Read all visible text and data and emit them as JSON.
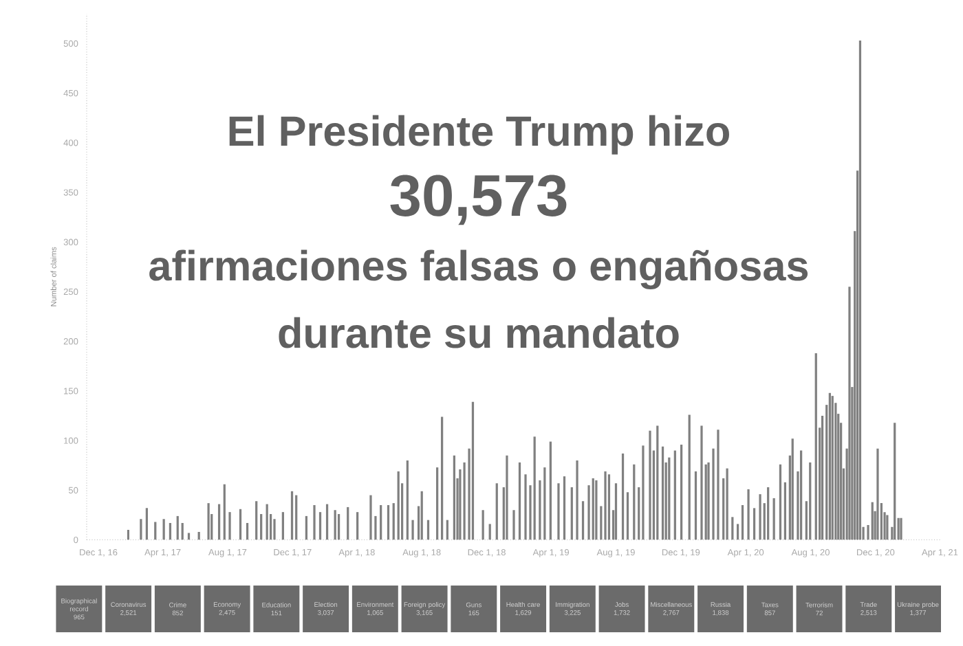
{
  "chart_data": [
    {
      "type": "bar",
      "title": "El Presidente Trump hizo",
      "subtitle": "30,573",
      "annotations": [
        "afirmaciones falsas o engañosas",
        "durante su mandato"
      ],
      "ylabel": "Number of claims",
      "color": "#808080",
      "x": [
        "2017-01-26",
        "2017-02-19",
        "2017-03-02",
        "2017-03-18",
        "2017-04-03",
        "2017-04-15",
        "2017-04-29",
        "2017-05-08",
        "2017-05-20",
        "2017-06-08",
        "2017-06-26",
        "2017-07-02",
        "2017-07-16",
        "2017-07-26",
        "2017-08-05",
        "2017-08-25",
        "2017-09-07",
        "2017-09-24",
        "2017-10-03",
        "2017-10-14",
        "2017-10-21",
        "2017-10-28",
        "2017-11-13",
        "2017-11-30",
        "2017-12-08",
        "2017-12-27",
        "2018-01-11",
        "2018-01-22",
        "2018-02-04",
        "2018-02-19",
        "2018-02-26",
        "2018-03-15",
        "2018-04-02",
        "2018-04-27",
        "2018-05-06",
        "2018-05-16",
        "2018-05-30",
        "2018-06-09",
        "2018-06-18",
        "2018-06-25",
        "2018-07-05",
        "2018-07-15",
        "2018-07-26",
        "2018-08-01",
        "2018-08-13",
        "2018-08-30",
        "2018-09-08",
        "2018-09-18",
        "2018-10-01",
        "2018-10-07",
        "2018-10-12",
        "2018-10-20",
        "2018-10-29",
        "2018-11-05",
        "2018-11-24",
        "2018-12-07",
        "2018-12-20",
        "2019-01-02",
        "2019-01-08",
        "2019-01-21",
        "2019-02-01",
        "2019-02-12",
        "2019-02-21",
        "2019-03-01",
        "2019-03-11",
        "2019-03-20",
        "2019-03-31",
        "2019-04-15",
        "2019-04-26",
        "2019-05-10",
        "2019-05-20",
        "2019-05-31",
        "2019-06-11",
        "2019-06-19",
        "2019-06-25",
        "2019-07-04",
        "2019-07-12",
        "2019-07-19",
        "2019-07-27",
        "2019-08-01",
        "2019-08-14",
        "2019-08-23",
        "2019-09-04",
        "2019-09-13",
        "2019-09-21",
        "2019-10-04",
        "2019-10-11",
        "2019-10-18",
        "2019-10-28",
        "2019-11-03",
        "2019-11-09",
        "2019-11-20",
        "2019-12-02",
        "2019-12-17",
        "2019-12-29",
        "2020-01-09",
        "2020-01-17",
        "2020-01-22",
        "2020-01-31",
        "2020-02-09",
        "2020-02-19",
        "2020-02-26",
        "2020-03-07",
        "2020-03-17",
        "2020-03-26",
        "2020-04-06",
        "2020-04-17",
        "2020-04-28",
        "2020-05-06",
        "2020-05-13",
        "2020-05-24",
        "2020-06-05",
        "2020-06-14",
        "2020-06-23",
        "2020-06-28",
        "2020-07-08",
        "2020-07-14",
        "2020-07-24",
        "2020-07-31",
        "2020-08-11",
        "2020-08-18",
        "2020-08-23",
        "2020-08-31",
        "2020-09-06",
        "2020-09-11",
        "2020-09-17",
        "2020-09-22",
        "2020-09-27",
        "2020-10-02",
        "2020-10-08",
        "2020-10-13",
        "2020-10-18",
        "2020-10-23",
        "2020-10-28",
        "2020-11-02",
        "2020-11-08",
        "2020-11-17",
        "2020-11-25",
        "2020-11-30",
        "2020-12-05",
        "2020-12-12",
        "2020-12-18",
        "2020-12-23",
        "2021-01-01",
        "2021-01-06",
        "2021-01-13",
        "2021-01-18"
      ],
      "values": [
        10,
        21,
        32,
        18,
        21,
        17,
        24,
        17,
        7,
        8,
        37,
        26,
        36,
        56,
        28,
        31,
        17,
        39,
        26,
        36,
        26,
        21,
        28,
        49,
        45,
        24,
        35,
        28,
        36,
        30,
        26,
        33,
        28,
        45,
        24,
        35,
        35,
        37,
        69,
        57,
        80,
        20,
        34,
        49,
        20,
        73,
        124,
        20,
        85,
        62,
        71,
        78,
        92,
        139,
        30,
        16,
        57,
        53,
        85,
        30,
        78,
        66,
        55,
        104,
        60,
        73,
        99,
        57,
        64,
        53,
        80,
        39,
        55,
        62,
        60,
        34,
        69,
        66,
        30,
        57,
        87,
        48,
        76,
        53,
        95,
        110,
        90,
        115,
        94,
        78,
        83,
        90,
        96,
        126,
        69,
        115,
        76,
        78,
        92,
        111,
        62,
        72,
        23,
        16,
        35,
        51,
        32,
        46,
        37,
        53,
        42,
        76,
        58,
        85,
        102,
        69,
        90,
        39,
        78,
        188,
        113,
        125,
        136,
        148,
        145,
        138,
        127,
        118,
        72,
        92,
        255,
        154,
        311,
        372,
        503,
        13,
        15,
        38,
        29,
        92,
        37,
        28,
        25,
        13,
        118,
        22,
        22
      ],
      "xlim": [
        "2016-11-09",
        "2021-04-03"
      ],
      "xticks": [
        {
          "value": "2016-12-01",
          "label": "Dec 1, 16"
        },
        {
          "value": "2017-04-01",
          "label": "Apr 1, 17"
        },
        {
          "value": "2017-08-01",
          "label": "Aug 1, 17"
        },
        {
          "value": "2017-12-01",
          "label": "Dec 1, 17"
        },
        {
          "value": "2018-04-01",
          "label": "Apr 1, 18"
        },
        {
          "value": "2018-08-01",
          "label": "Aug 1, 18"
        },
        {
          "value": "2018-12-01",
          "label": "Dec 1, 18"
        },
        {
          "value": "2019-04-01",
          "label": "Apr 1, 19"
        },
        {
          "value": "2019-08-01",
          "label": "Aug 1, 19"
        },
        {
          "value": "2019-12-01",
          "label": "Dec 1, 19"
        },
        {
          "value": "2020-04-01",
          "label": "Apr 1, 20"
        },
        {
          "value": "2020-08-01",
          "label": "Aug 1, 20"
        },
        {
          "value": "2020-12-01",
          "label": "Dec 1, 20"
        },
        {
          "value": "2021-04-01",
          "label": "Apr 1, 21"
        }
      ],
      "ylim": [
        0,
        530
      ],
      "yticks": [
        0,
        50,
        100,
        150,
        200,
        250,
        300,
        350,
        400,
        450,
        500
      ]
    },
    {
      "type": "other",
      "color": "#6b6b6b",
      "categories": [
        "Biographical record",
        "Coronavirus",
        "Crime",
        "Economy",
        "Education",
        "Election",
        "Environment",
        "Foreign policy",
        "Guns",
        "Health care",
        "Immigration",
        "Jobs",
        "Miscellaneous",
        "Russia",
        "Taxes",
        "Terrorism",
        "Trade",
        "Ukraine probe"
      ],
      "value_labels": [
        "965",
        "2,521",
        "852",
        "2,475",
        "151",
        "3,037",
        "1,065",
        "3,165",
        "165",
        "1,629",
        "3,225",
        "1,732",
        "2,767",
        "1,838",
        "857",
        "72",
        "2,513",
        "1,377"
      ]
    }
  ]
}
